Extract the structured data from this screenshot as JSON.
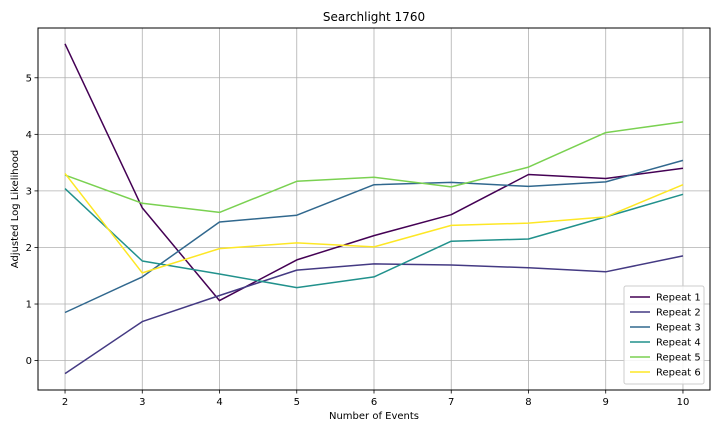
{
  "chart_data": {
    "type": "line",
    "title": "Searchlight 1760",
    "xlabel": "Number of Events",
    "ylabel": "Adjusted Log Likelihood",
    "x": [
      2,
      3,
      4,
      5,
      6,
      7,
      8,
      9,
      10
    ],
    "xlim": [
      1.65,
      10.35
    ],
    "ylim": [
      -0.52,
      5.88
    ],
    "xticks": [
      2,
      3,
      4,
      5,
      6,
      7,
      8,
      9,
      10
    ],
    "yticks": [
      0,
      1,
      2,
      3,
      4,
      5
    ],
    "grid": true,
    "legend_position": "lower-right",
    "series": [
      {
        "name": "Repeat 1",
        "color": "#440154",
        "values": [
          5.6,
          2.7,
          1.06,
          1.78,
          2.21,
          2.58,
          3.29,
          3.22,
          3.4
        ]
      },
      {
        "name": "Repeat 2",
        "color": "#443a83",
        "values": [
          -0.23,
          0.69,
          1.15,
          1.6,
          1.71,
          1.69,
          1.64,
          1.57,
          1.85
        ]
      },
      {
        "name": "Repeat 3",
        "color": "#31688e",
        "values": [
          0.85,
          1.48,
          2.45,
          2.57,
          3.11,
          3.15,
          3.08,
          3.16,
          3.54
        ]
      },
      {
        "name": "Repeat 4",
        "color": "#21918c",
        "values": [
          3.04,
          1.76,
          1.53,
          1.29,
          1.48,
          2.11,
          2.15,
          2.54,
          2.94
        ]
      },
      {
        "name": "Repeat 5",
        "color": "#7ad151",
        "values": [
          3.28,
          2.78,
          2.62,
          3.17,
          3.24,
          3.07,
          3.42,
          4.03,
          4.22
        ]
      },
      {
        "name": "Repeat 6",
        "color": "#fde725",
        "values": [
          3.31,
          1.55,
          1.98,
          2.08,
          2.01,
          2.39,
          2.43,
          2.54,
          3.11
        ]
      }
    ]
  }
}
